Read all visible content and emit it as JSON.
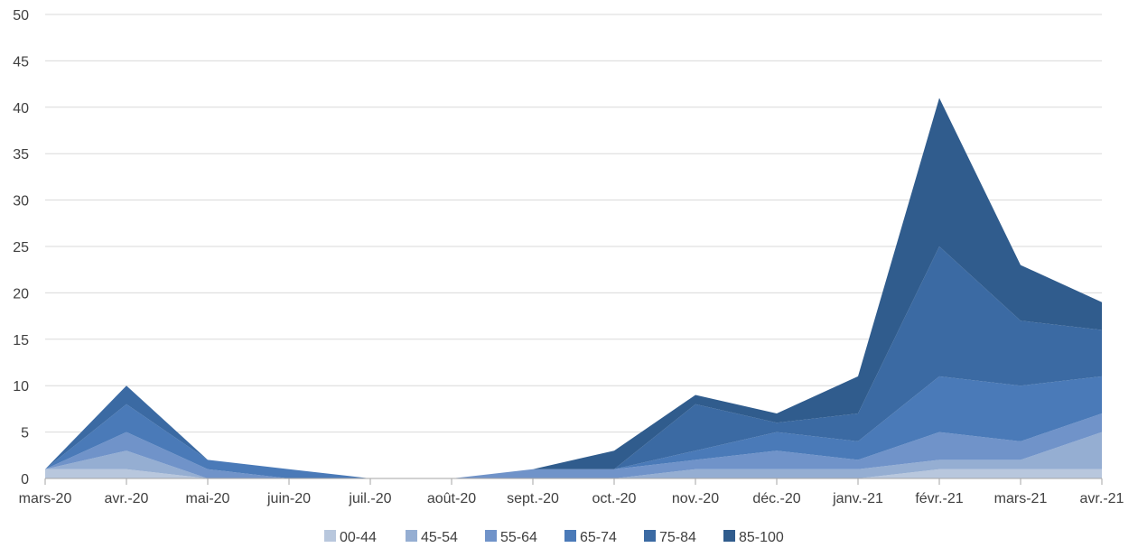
{
  "chart_data": {
    "type": "area",
    "stacked": true,
    "title": "",
    "xlabel": "",
    "ylabel": "",
    "ylim": [
      0,
      50
    ],
    "yticks": [
      0,
      5,
      10,
      15,
      20,
      25,
      30,
      35,
      40,
      45,
      50
    ],
    "grid": true,
    "legend_position": "bottom",
    "x_ticks": [
      "mars-20",
      "avr.-20",
      "mai-20",
      "juin-20",
      "juil.-20",
      "août-20",
      "sept.-20",
      "oct.-20",
      "nov.-20",
      "déc.-20",
      "janv.-21",
      "févr.-21",
      "mars-21",
      "avr.-21"
    ],
    "x": [
      "mars-20",
      "avr.-20",
      "mai-20",
      "juin-20",
      "juil.-20",
      "août-20",
      "sept.-20",
      "oct.-20",
      "nov.-20",
      "déc.-20",
      "janv.-21",
      "févr.-21",
      "mars-21",
      "avr.-21"
    ],
    "series": [
      {
        "name": "00-44",
        "color": "#b8c7dd",
        "values": [
          1,
          1,
          0,
          0,
          0,
          0,
          0,
          0,
          0,
          0,
          0,
          1,
          1,
          1
        ]
      },
      {
        "name": "45-54",
        "color": "#95aed2",
        "values": [
          0,
          2,
          0,
          0,
          0,
          0,
          0,
          0,
          1,
          1,
          1,
          1,
          1,
          4
        ]
      },
      {
        "name": "55-64",
        "color": "#7093c9",
        "values": [
          0,
          2,
          1,
          0,
          0,
          0,
          1,
          1,
          1,
          2,
          1,
          3,
          2,
          2
        ]
      },
      {
        "name": "65-74",
        "color": "#4a7ab8",
        "values": [
          0,
          3,
          1,
          1,
          0,
          0,
          0,
          0,
          1,
          2,
          2,
          6,
          6,
          4
        ]
      },
      {
        "name": "75-84",
        "color": "#3b6aa3",
        "values": [
          0,
          2,
          0,
          0,
          0,
          0,
          0,
          0,
          5,
          1,
          3,
          14,
          7,
          5
        ]
      },
      {
        "name": "85-100",
        "color": "#305c8d",
        "values": [
          0,
          0,
          0,
          0,
          0,
          0,
          0,
          2,
          1,
          1,
          4,
          16,
          6,
          3
        ]
      }
    ]
  }
}
